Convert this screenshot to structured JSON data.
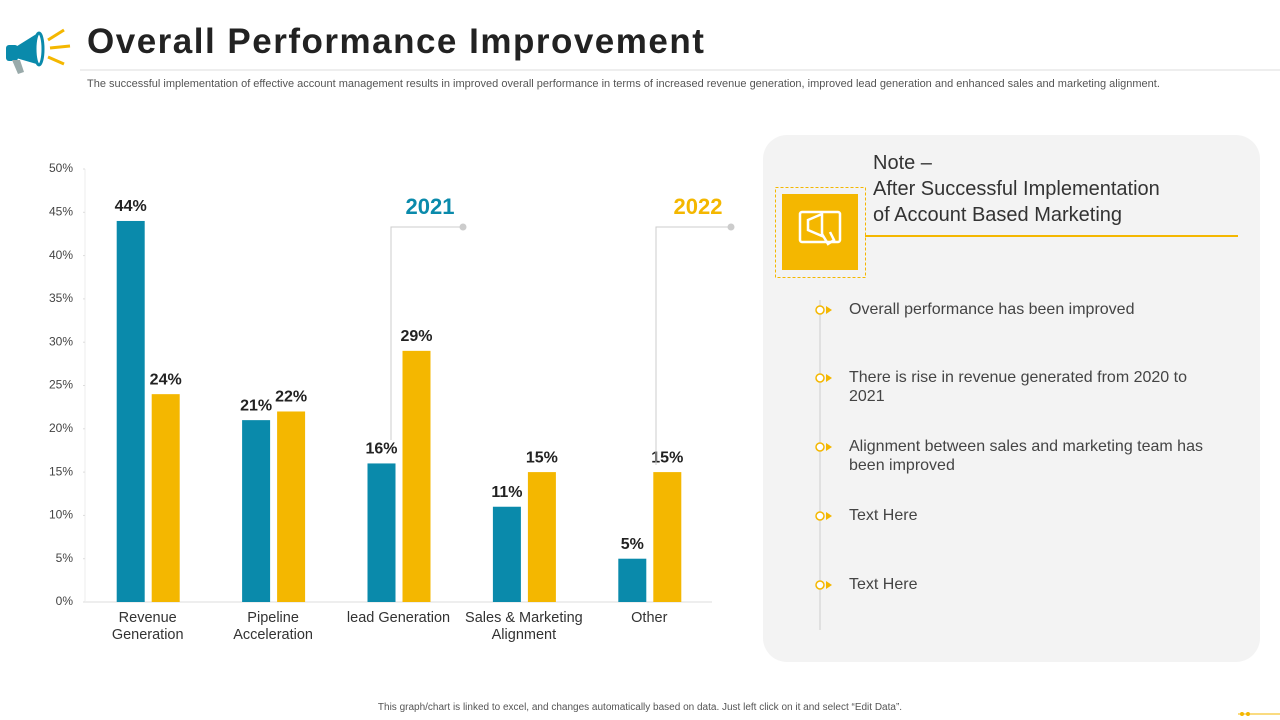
{
  "header": {
    "title": "Overall Performance Improvement",
    "subtitle": "The successful implementation of effective account management results in improved overall performance in terms of increased revenue generation, improved lead generation and enhanced sales and marketing alignment."
  },
  "chart_data": {
    "type": "bar",
    "categories": [
      "Revenue Generation",
      "Pipeline Acceleration",
      "lead Generation",
      "Sales & Marketing Alignment",
      "Other"
    ],
    "series": [
      {
        "name": "2021",
        "color": "#0a8aab",
        "values": [
          44,
          21,
          16,
          11,
          5
        ],
        "value_labels": [
          "44%",
          "21%",
          "16%",
          "11%",
          "5%"
        ]
      },
      {
        "name": "2022",
        "color": "#f4b700",
        "values": [
          24,
          22,
          29,
          15,
          15
        ],
        "value_labels": [
          "24%",
          "22%",
          "29%",
          "15%",
          "15%"
        ]
      }
    ],
    "ylim": [
      0,
      50
    ],
    "yticks": [
      {
        "value": 0,
        "label": "0%"
      },
      {
        "value": 5,
        "label": "5%"
      },
      {
        "value": 10,
        "label": "10%"
      },
      {
        "value": 15,
        "label": "15%"
      },
      {
        "value": 20,
        "label": "20%"
      },
      {
        "value": 25,
        "label": "25%"
      },
      {
        "value": 30,
        "label": "30%"
      },
      {
        "value": 35,
        "label": "35%"
      },
      {
        "value": 40,
        "label": "40%"
      },
      {
        "value": 45,
        "label": "45%"
      },
      {
        "value": 50,
        "label": "50%"
      }
    ],
    "grid": false
  },
  "note": {
    "heading": [
      "Note –",
      "After Successful Implementation",
      "of Account Based Marketing"
    ],
    "items": [
      "Overall performance has been improved",
      "There is rise in revenue generated from 2020 to 2021",
      "Alignment between sales and marketing team has been improved",
      "Text Here",
      "Text Here"
    ]
  },
  "footer": "This graph/chart is linked to excel, and changes automatically based on data. Just left click on it and select “Edit Data”."
}
